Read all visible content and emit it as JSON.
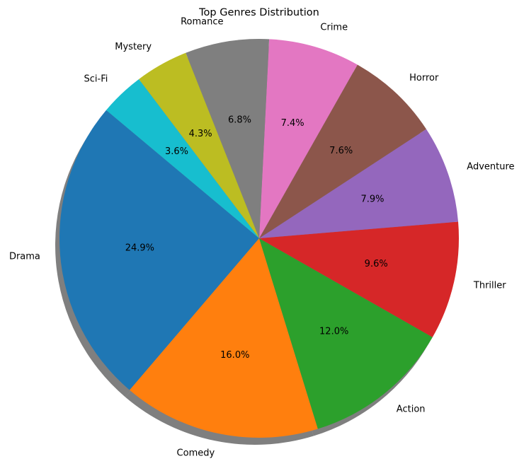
{
  "chart_data": {
    "type": "pie",
    "title": "Top Genres Distribution",
    "categories": [
      "Drama",
      "Comedy",
      "Action",
      "Thriller",
      "Adventure",
      "Horror",
      "Crime",
      "Romance",
      "Mystery",
      "Sci-Fi"
    ],
    "values": [
      24.9,
      16.0,
      12.0,
      9.6,
      7.9,
      7.6,
      7.4,
      6.8,
      4.3,
      3.6
    ],
    "value_labels": [
      "24.9%",
      "16.0%",
      "12.0%",
      "9.6%",
      "7.9%",
      "7.6%",
      "7.4%",
      "6.8%",
      "4.3%",
      "3.6%"
    ],
    "colors": [
      "#1f77b4",
      "#ff7f0e",
      "#2ca02c",
      "#d62728",
      "#9467bd",
      "#8c564b",
      "#e377c2",
      "#7f7f7f",
      "#bcbd22",
      "#17becf"
    ],
    "start_angle_deg": 140,
    "direction": "counterclockwise",
    "shadow": true,
    "legend": "none"
  }
}
